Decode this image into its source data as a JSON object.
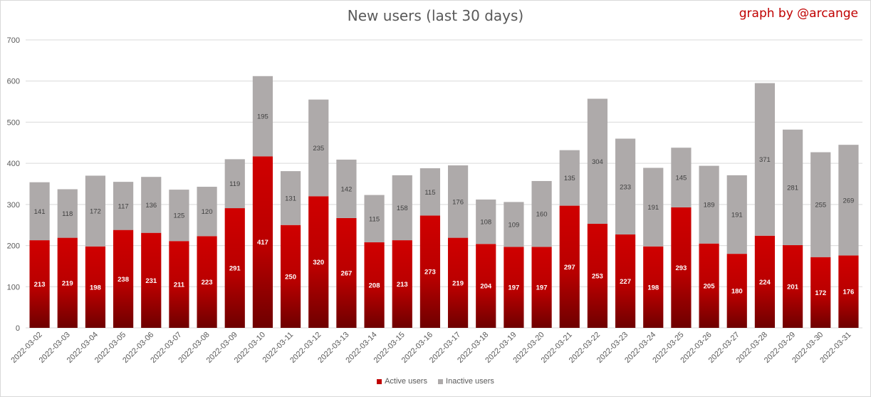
{
  "chart_data": {
    "type": "bar",
    "stacked": true,
    "title": "New users (last 30 days)",
    "credit": "graph by @arcange",
    "categories": [
      "2022-03-02",
      "2022-03-03",
      "2022-03-04",
      "2022-03-05",
      "2022-03-06",
      "2022-03-07",
      "2022-03-08",
      "2022-03-09",
      "2022-03-10",
      "2022-03-11",
      "2022-03-12",
      "2022-03-13",
      "2022-03-14",
      "2022-03-15",
      "2022-03-16",
      "2022-03-17",
      "2022-03-18",
      "2022-03-19",
      "2022-03-20",
      "2022-03-21",
      "2022-03-22",
      "2022-03-23",
      "2022-03-24",
      "2022-03-25",
      "2022-03-26",
      "2022-03-27",
      "2022-03-28",
      "2022-03-29",
      "2022-03-30",
      "2022-03-31"
    ],
    "series": [
      {
        "name": "Active users",
        "color": "#c00000",
        "values": [
          213,
          219,
          198,
          238,
          231,
          211,
          223,
          291,
          417,
          250,
          320,
          267,
          208,
          213,
          273,
          219,
          204,
          197,
          197,
          297,
          253,
          227,
          198,
          293,
          205,
          180,
          224,
          201,
          172,
          176
        ]
      },
      {
        "name": "Inactive users",
        "color": "#aeaaaa",
        "values": [
          141,
          118,
          172,
          117,
          136,
          125,
          120,
          119,
          195,
          131,
          235,
          142,
          115,
          158,
          115,
          176,
          108,
          109,
          160,
          135,
          304,
          233,
          191,
          145,
          189,
          191,
          371,
          281,
          255,
          269
        ]
      }
    ],
    "ylim": [
      0,
      700
    ],
    "yticks": [
      0,
      100,
      200,
      300,
      400,
      500,
      600,
      700
    ],
    "grid": true,
    "legend": "bottom"
  }
}
